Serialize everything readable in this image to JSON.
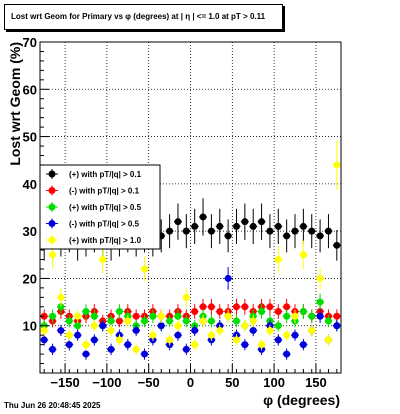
{
  "title": "Lost wrt Geom for Primary vs φ (degrees) at |  η  | <= 1.0 at pT > 0.11",
  "footer_date": "Thu Jun 26 20:48:45 2025",
  "chart_data": {
    "type": "scatter",
    "xlabel": "φ (degrees)",
    "ylabel": "Lost wrt Geom (%)",
    "xlim": [
      -180,
      180
    ],
    "ylim": [
      0,
      70
    ],
    "grid": true,
    "legend_placement": "middle-left",
    "x_ticks": [
      -150,
      -100,
      -50,
      0,
      50,
      100,
      150
    ],
    "x_tick_labels": [
      "−150",
      "−100",
      "−50",
      "0",
      "50",
      "100",
      "150"
    ],
    "y_ticks": [
      10,
      20,
      30,
      40,
      50,
      60,
      70
    ],
    "y_tick_labels": [
      "10",
      "20",
      "30",
      "40",
      "50",
      "60",
      "70"
    ],
    "series": [
      {
        "name": "(+) with pT/|q| > 0.1",
        "color": "#000000",
        "marker": "circle",
        "x": [
          -175,
          -165,
          -155,
          -145,
          -135,
          -125,
          -115,
          -105,
          -95,
          -85,
          -75,
          -65,
          -55,
          -45,
          -35,
          -25,
          -15,
          -5,
          5,
          15,
          25,
          35,
          45,
          55,
          65,
          75,
          85,
          95,
          105,
          115,
          125,
          135,
          145,
          155,
          165,
          175
        ],
        "y": [
          27,
          27,
          28,
          29,
          27,
          28,
          29,
          28,
          27,
          28,
          29,
          28,
          29,
          28,
          29,
          30,
          32,
          30,
          31,
          33,
          30,
          31,
          29,
          31,
          32,
          31,
          32,
          30,
          31,
          29,
          30,
          31,
          30,
          29,
          30,
          27
        ]
      },
      {
        "name": "(-) with pT/|q| > 0.1",
        "color": "#ff0000",
        "marker": "circle",
        "x": [
          -175,
          -165,
          -155,
          -145,
          -135,
          -125,
          -115,
          -105,
          -95,
          -85,
          -75,
          -65,
          -55,
          -45,
          -35,
          -25,
          -15,
          -5,
          5,
          15,
          25,
          35,
          45,
          55,
          65,
          75,
          85,
          95,
          105,
          115,
          125,
          135,
          145,
          155,
          165,
          175
        ],
        "y": [
          12,
          11,
          13,
          12,
          11,
          12,
          13,
          11,
          12,
          11,
          13,
          12,
          12,
          13,
          12,
          12,
          13,
          12,
          13,
          14,
          14,
          13,
          13,
          14,
          14,
          13,
          14,
          14,
          13,
          14,
          13,
          13,
          12,
          13,
          12,
          12
        ]
      },
      {
        "name": "(+) with pT/|q| > 0.5",
        "color": "#00dd00",
        "marker": "circle",
        "x": [
          -175,
          -165,
          -155,
          -145,
          -135,
          -125,
          -115,
          -105,
          -95,
          -85,
          -75,
          -65,
          -55,
          -45,
          -35,
          -25,
          -15,
          -5,
          5,
          15,
          25,
          35,
          45,
          55,
          65,
          75,
          85,
          95,
          105,
          115,
          125,
          135,
          145,
          155,
          165,
          175
        ],
        "y": [
          10,
          12,
          14,
          11,
          10,
          13,
          12,
          10,
          11,
          13,
          12,
          10,
          11,
          12,
          10,
          11,
          12,
          11,
          10,
          12,
          11,
          10,
          12,
          11,
          10,
          12,
          13,
          11,
          10,
          12,
          11,
          13,
          12,
          15,
          11,
          10
        ]
      },
      {
        "name": "(-) with pT/|q| > 0.5",
        "color": "#0000dd",
        "marker": "circle",
        "x": [
          -175,
          -165,
          -155,
          -145,
          -135,
          -125,
          -115,
          -105,
          -95,
          -85,
          -75,
          -65,
          -55,
          -45,
          -35,
          -25,
          -15,
          -5,
          5,
          15,
          25,
          35,
          45,
          55,
          65,
          75,
          85,
          95,
          105,
          115,
          125,
          135,
          145,
          155,
          165,
          175
        ],
        "y": [
          7,
          5,
          9,
          6,
          8,
          4,
          7,
          10,
          5,
          8,
          6,
          9,
          4,
          7,
          10,
          6,
          8,
          5,
          9,
          11,
          7,
          10,
          20,
          8,
          6,
          9,
          5,
          10,
          7,
          4,
          8,
          6,
          9,
          12,
          7,
          10
        ]
      },
      {
        "name": "(+) with pT/|q| > 1.0",
        "color": "#ffff00",
        "marker": "circle",
        "x": [
          -175,
          -165,
          -155,
          -145,
          -135,
          -125,
          -115,
          -105,
          -95,
          -85,
          -75,
          -65,
          -55,
          -45,
          -35,
          -25,
          -15,
          -5,
          5,
          15,
          25,
          35,
          45,
          55,
          65,
          75,
          85,
          95,
          105,
          115,
          125,
          135,
          145,
          155,
          165,
          175
        ],
        "y": [
          9,
          25,
          16,
          8,
          12,
          6,
          10,
          24,
          9,
          7,
          11,
          5,
          22,
          8,
          12,
          7,
          10,
          16,
          6,
          11,
          8,
          9,
          12,
          7,
          10,
          11,
          6,
          9,
          24,
          8,
          12,
          25,
          9,
          20,
          7,
          44
        ]
      }
    ]
  }
}
